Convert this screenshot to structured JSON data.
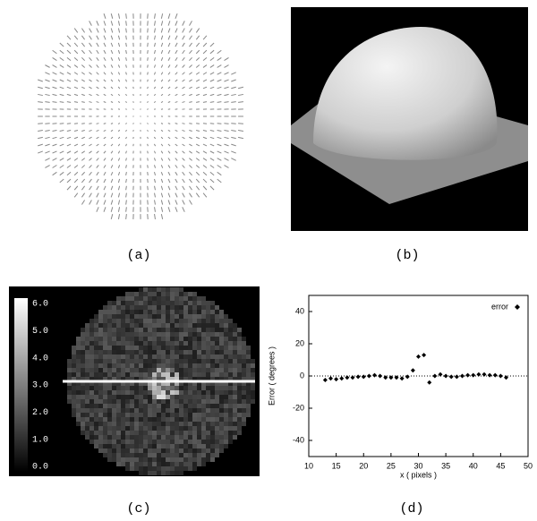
{
  "panels": [
    {
      "caption": "(a)"
    },
    {
      "caption": "(b)"
    },
    {
      "caption": "(c)",
      "colorbar_ticks": [
        "0.0",
        "1.0",
        "2.0",
        "3.0",
        "4.0",
        "5.0",
        "6.0"
      ]
    },
    {
      "caption": "(d)"
    }
  ],
  "chart_data": {
    "type": "scatter",
    "xlabel": "x ( pixels )",
    "ylabel": "Error ( degrees )",
    "series": [
      {
        "name": "error",
        "color": "#000000",
        "x": [
          13,
          14,
          15,
          16,
          17,
          18,
          19,
          20,
          21,
          22,
          23,
          24,
          25,
          26,
          27,
          28,
          29,
          30,
          31,
          32,
          33,
          34,
          35,
          36,
          37,
          38,
          39,
          40,
          41,
          42,
          43,
          44,
          45,
          46
        ],
        "values": [
          -2.5,
          -1.5,
          -2,
          -1.5,
          -1,
          -1,
          -0.5,
          -0.5,
          0,
          0.5,
          0,
          -1,
          -1,
          -1,
          -1.5,
          -0.5,
          3.5,
          12,
          13,
          -4,
          0,
          1,
          0,
          -0.5,
          -0.5,
          0,
          0.5,
          0.5,
          1,
          1,
          0.5,
          0.5,
          0,
          -1
        ]
      }
    ],
    "xlim": [
      10,
      50
    ],
    "ylim": [
      -50,
      50
    ],
    "xticks": [
      10,
      15,
      20,
      25,
      30,
      35,
      40,
      45,
      50
    ],
    "yticks": [
      -40,
      -20,
      0,
      20,
      40
    ],
    "zero_line": true
  }
}
